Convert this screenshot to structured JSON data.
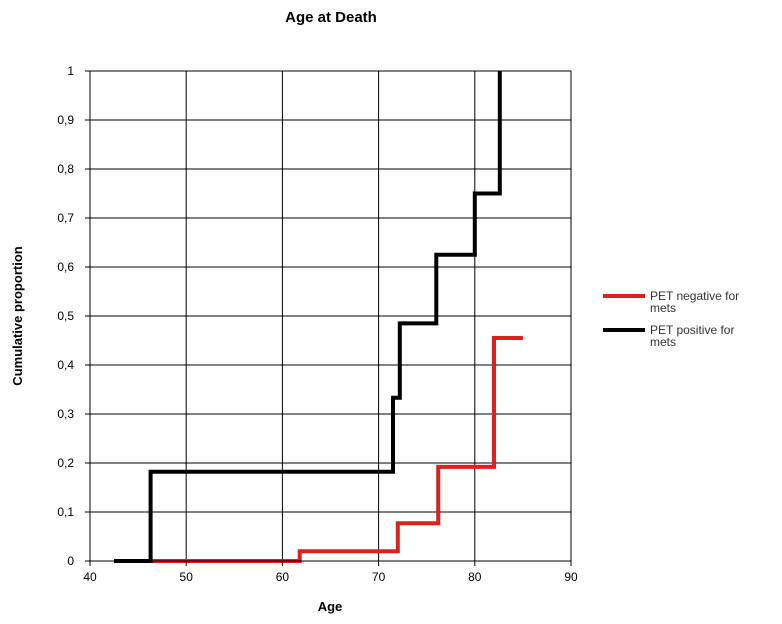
{
  "chart_data": {
    "type": "line",
    "step": true,
    "title": "Age at Death",
    "xlabel": "Age",
    "ylabel": "Cumulative proportion",
    "xlim": [
      40,
      90
    ],
    "ylim": [
      0,
      1
    ],
    "x_ticks": [
      40,
      50,
      60,
      70,
      80,
      90
    ],
    "y_ticks": [
      0,
      0.1,
      0.2,
      0.3,
      0.4,
      0.5,
      0.6,
      0.7,
      0.8,
      0.9,
      1
    ],
    "x_tick_labels": [
      "40",
      "50",
      "60",
      "70",
      "80",
      "90"
    ],
    "y_tick_labels": [
      "0",
      "0,1",
      "0,2",
      "0,3",
      "0,4",
      "0,5",
      "0,6",
      "0,7",
      "0,8",
      "0,9",
      "1"
    ],
    "grid": true,
    "legend_position": "right",
    "series": [
      {
        "name": "PET negative for mets",
        "legend_lines": [
          "PET negative for",
          "mets"
        ],
        "color": "#e0201c",
        "x": [
          46.5,
          61.8,
          61.8,
          72.0,
          72.0,
          76.2,
          76.2,
          82.0,
          82.0,
          85.0
        ],
        "y": [
          0,
          0,
          0.02,
          0.02,
          0.077,
          0.077,
          0.192,
          0.192,
          0.455,
          0.455
        ]
      },
      {
        "name": "PET positive for mets",
        "legend_lines": [
          "PET positive for",
          "mets"
        ],
        "color": "#000000",
        "x": [
          42.5,
          46.3,
          46.3,
          71.5,
          71.5,
          72.2,
          72.2,
          76.0,
          76.0,
          80.0,
          80.0,
          82.6,
          82.6
        ],
        "y": [
          0,
          0,
          0.182,
          0.182,
          0.333,
          0.333,
          0.485,
          0.485,
          0.625,
          0.625,
          0.75,
          0.75,
          1.0
        ]
      }
    ]
  }
}
